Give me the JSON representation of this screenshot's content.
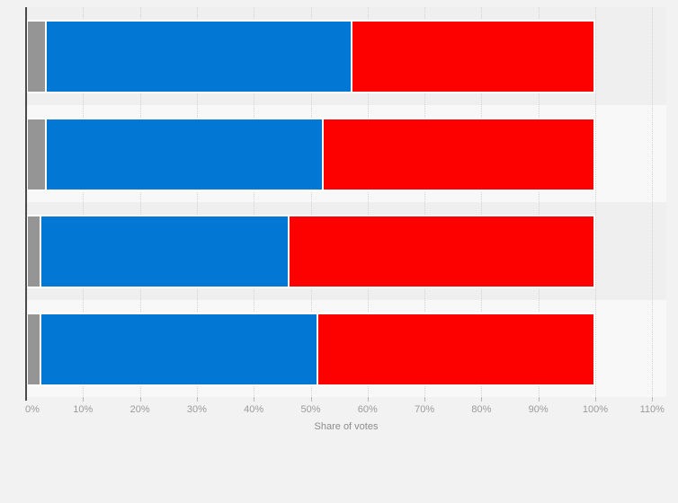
{
  "page": {
    "background_color": "#f2f2f2",
    "band_color_dark": "#efefef",
    "band_color_light": "#f8f8f8",
    "gridline_color": "#d2d2d2",
    "axis_line_color": "#4a4a4a",
    "tick_label_color": "#9b9b9b",
    "axis_title_color": "#8c8c8c"
  },
  "chart_data": {
    "type": "bar",
    "orientation": "horizontal",
    "stacked": true,
    "title": "",
    "xlabel": "Share of votes",
    "ylabel": "",
    "x_ticks": [
      "0%",
      "10%",
      "20%",
      "30%",
      "40%",
      "50%",
      "60%",
      "70%",
      "80%",
      "90%",
      "100%",
      "110%"
    ],
    "x_tick_values": [
      0,
      10,
      20,
      30,
      40,
      50,
      60,
      70,
      80,
      90,
      100,
      110
    ],
    "xlim": [
      0,
      112.5
    ],
    "grid": "vertical-dotted",
    "legend_position": "none",
    "categories": [
      "bar-1",
      "bar-2",
      "bar-3",
      "bar-4"
    ],
    "series": [
      {
        "name": "gray-segment",
        "color": "#959595",
        "values": [
          3,
          3,
          2,
          2
        ]
      },
      {
        "name": "blue-segment",
        "color": "#0277d4",
        "values": [
          54,
          49,
          44,
          49
        ]
      },
      {
        "name": "red-segment",
        "color": "#fc0100",
        "values": [
          43,
          48,
          54,
          49
        ]
      }
    ]
  }
}
